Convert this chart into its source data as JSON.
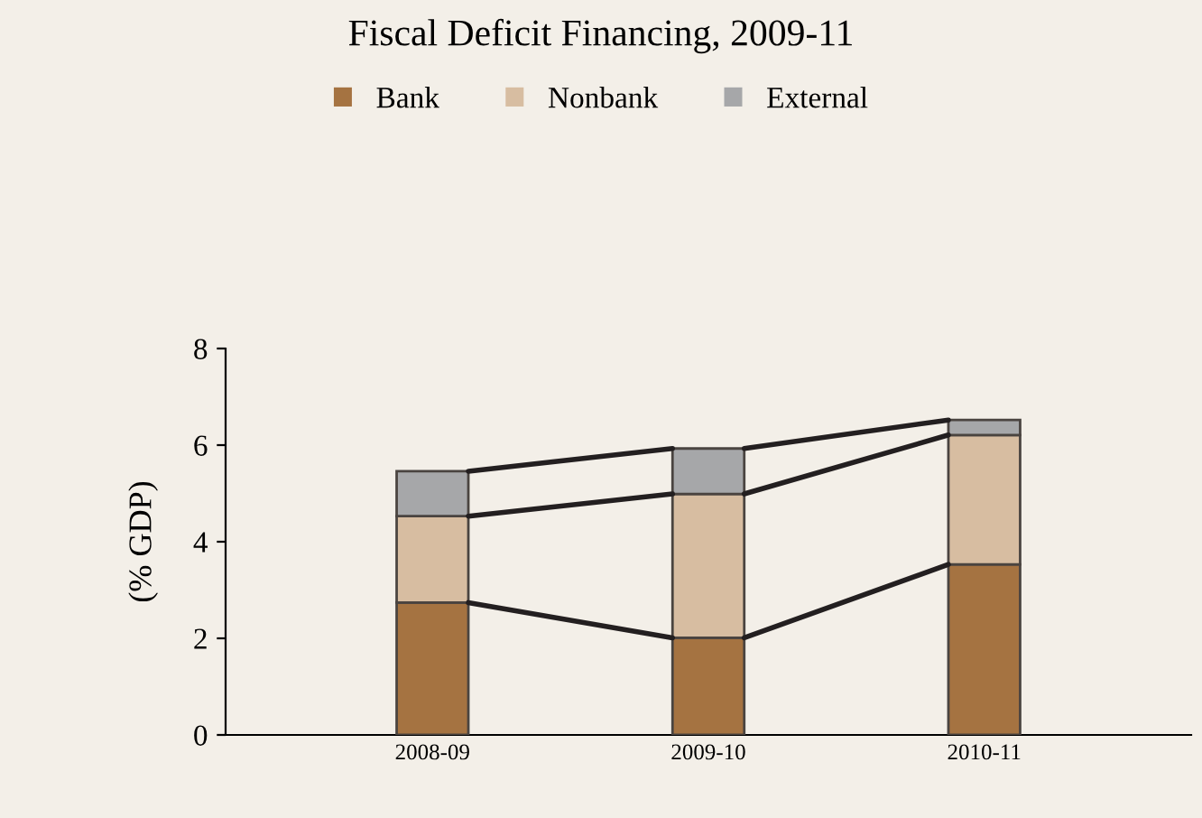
{
  "chart_data": {
    "type": "bar",
    "title": "Fiscal Deficit Financing, 2009-11",
    "ylabel": "(% GDP)",
    "categories": [
      "2008-09",
      "2009-10",
      "2010-11"
    ],
    "stacked": true,
    "series": [
      {
        "name": "Bank",
        "color": "#a57341",
        "values": [
          2.74,
          2.01,
          3.53
        ]
      },
      {
        "name": "Nonbank",
        "color": "#d7bda1",
        "values": [
          1.79,
          2.98,
          2.68
        ]
      },
      {
        "name": "External",
        "color": "#a6a7a9",
        "values": [
          0.93,
          0.94,
          0.31
        ]
      }
    ],
    "ylim": [
      0,
      8
    ],
    "yticks": [
      0,
      2,
      4,
      6,
      8
    ],
    "grid": false,
    "legend": "top"
  }
}
